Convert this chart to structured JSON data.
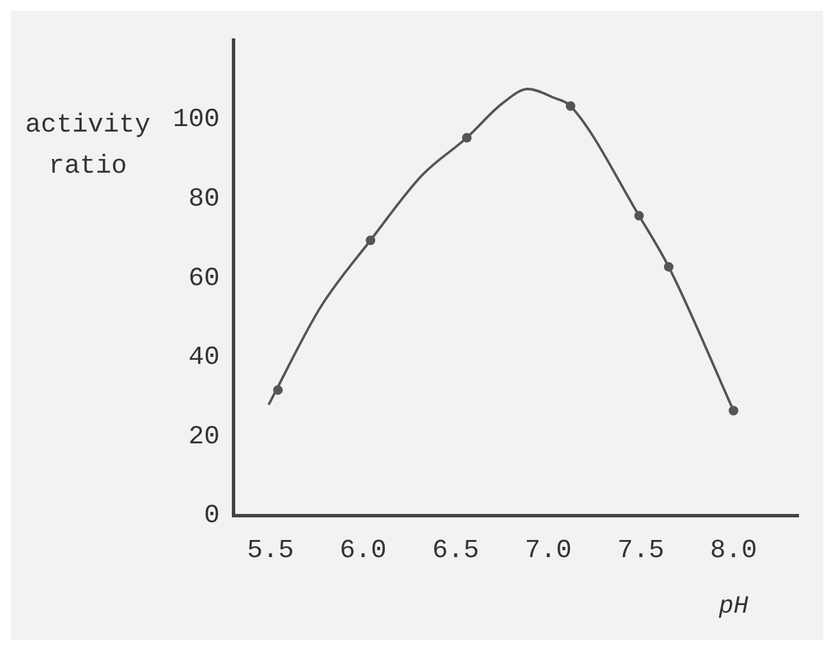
{
  "chart_data": {
    "type": "scatter",
    "xlabel": "pH",
    "ylabel": "activity ratio",
    "xlim": [
      5.3,
      8.35
    ],
    "ylim": [
      0,
      120
    ],
    "xticks": [
      {
        "value": 5.5,
        "label": "5.5"
      },
      {
        "value": 6,
        "label": "6.0"
      },
      {
        "value": 6.5,
        "label": "6.5"
      },
      {
        "value": 7,
        "label": "7.0"
      },
      {
        "value": 7.5,
        "label": "7.5"
      },
      {
        "value": 8,
        "label": "8.0"
      }
    ],
    "yticks": [
      0,
      20,
      40,
      60,
      80,
      100
    ],
    "grid": false,
    "legend": false,
    "series": [
      {
        "type": "scatter",
        "color": "#555555",
        "marker": "circle",
        "x": [
          5.54,
          6.04,
          6.56,
          7.12,
          7.49,
          7.65,
          8.0
        ],
        "values": [
          31.7,
          69.5,
          95.4,
          103.4,
          75.7,
          62.8,
          26.5
        ]
      },
      {
        "type": "line",
        "color": "#555555",
        "marker": "none",
        "line_style": "solid",
        "x": [
          5.49,
          5.77,
          6.04,
          6.32,
          6.56,
          6.75,
          6.89,
          7.03,
          7.12,
          7.49,
          7.65,
          8.0
        ],
        "values": [
          28,
          52.6,
          69.5,
          86,
          95.4,
          104,
          107.7,
          105.5,
          103.4,
          75.7,
          62.8,
          26.5
        ]
      }
    ]
  }
}
